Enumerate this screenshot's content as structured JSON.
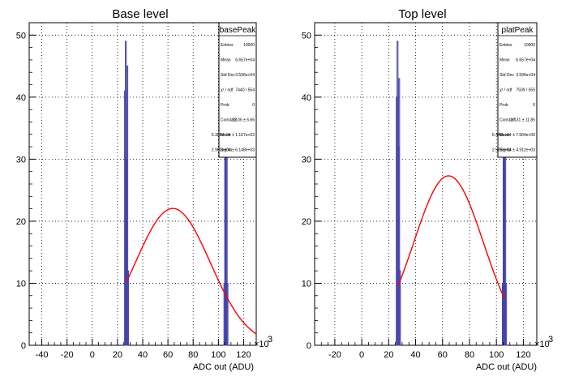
{
  "chart_data": [
    {
      "type": "histogram",
      "title": "Base level",
      "xlabel": "ADC out (ADU)",
      "x_multiplier_label": "×10",
      "x_multiplier_exp": "3",
      "xlim": [
        -50,
        130
      ],
      "ylim": [
        0,
        52
      ],
      "x_ticks": [
        -40,
        -20,
        0,
        20,
        40,
        60,
        80,
        100,
        120
      ],
      "y_ticks": [
        0,
        10,
        20,
        30,
        40,
        50
      ],
      "grid": true,
      "histogram_color": "#4444aa",
      "fit_color": "#ff0000",
      "histogram_bins": [
        {
          "x": 25.6,
          "y": 41
        },
        {
          "x": 26.2,
          "y": 49
        },
        {
          "x": 26.8,
          "y": 30
        },
        {
          "x": 27.4,
          "y": 45
        },
        {
          "x": 28.0,
          "y": 12
        },
        {
          "x": 104.4,
          "y": 10
        },
        {
          "x": 105.0,
          "y": 40
        },
        {
          "x": 105.6,
          "y": 43
        },
        {
          "x": 106.2,
          "y": 33
        },
        {
          "x": 106.8,
          "y": 10
        }
      ],
      "fit": {
        "constant": 22.06,
        "mean": 63.88,
        "sigma": 29.6,
        "x_start": 27,
        "x_end": 130
      },
      "stats": {
        "name": "basePeak",
        "rows": [
          {
            "label": "Entries",
            "value": "10000"
          },
          {
            "label": "Mean",
            "value": "6.657e+04"
          },
          {
            "label": "Std Dev",
            "value": "3.596e+04"
          },
          {
            "label": "χ² / ndf",
            "value": "7440 / 554"
          },
          {
            "label": "Prob",
            "value": "0"
          },
          {
            "label": "Constant",
            "value": "22.06 ± 6.66"
          },
          {
            "label": "Mean",
            "value": "6.388e+04 ± 1.167e+03"
          },
          {
            "label": "Sigma",
            "value": "2.960e+04 ± 6.148e+03"
          }
        ]
      }
    },
    {
      "type": "histogram",
      "title": "Top level",
      "xlabel": "ADC out (ADU)",
      "x_multiplier_label": "×10",
      "x_multiplier_exp": "3",
      "xlim": [
        -35,
        130
      ],
      "ylim": [
        0,
        52
      ],
      "x_ticks": [
        -20,
        0,
        20,
        40,
        60,
        80,
        100,
        120
      ],
      "y_ticks": [
        0,
        10,
        20,
        30,
        40,
        50
      ],
      "grid": true,
      "histogram_color": "#4444aa",
      "fit_color": "#ff0000",
      "histogram_bins": [
        {
          "x": 25.6,
          "y": 40
        },
        {
          "x": 26.2,
          "y": 49
        },
        {
          "x": 26.8,
          "y": 32
        },
        {
          "x": 27.4,
          "y": 43
        },
        {
          "x": 28.0,
          "y": 12
        },
        {
          "x": 104.4,
          "y": 10
        },
        {
          "x": 105.0,
          "y": 39
        },
        {
          "x": 105.6,
          "y": 42
        },
        {
          "x": 106.2,
          "y": 32
        },
        {
          "x": 106.8,
          "y": 10
        }
      ],
      "fit": {
        "constant": 27.31,
        "mean": 64.46,
        "sigma": 25.89,
        "x_start": 27,
        "x_end": 106
      },
      "stats": {
        "name": "platPeak",
        "rows": [
          {
            "label": "Entries",
            "value": "10000"
          },
          {
            "label": "Mean",
            "value": "6.657e+04"
          },
          {
            "label": "Std Dev",
            "value": "3.596e+04"
          },
          {
            "label": "χ² / ndf",
            "value": "7509 / 555"
          },
          {
            "label": "Prob",
            "value": "0"
          },
          {
            "label": "Constant",
            "value": "27.31 ± 11.85"
          },
          {
            "label": "Mean",
            "value": "6.446e+04 ± 7.504e+00"
          },
          {
            "label": "Sigma",
            "value": "2.589e+04 ± 4.912e+03"
          }
        ]
      }
    }
  ]
}
